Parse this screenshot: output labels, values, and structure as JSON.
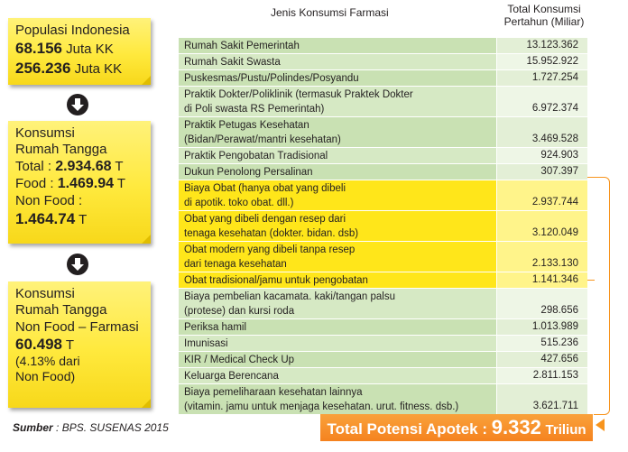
{
  "left": {
    "note1": {
      "title": "Populasi Indonesia",
      "kk_value": "68.156",
      "kk_unit": "Juta KK",
      "pop_value": "256.236",
      "pop_unit": "Juta KK"
    },
    "note2": {
      "line1": "Konsumsi",
      "line2": "Rumah Tangga",
      "total_label": "Total :",
      "total_value": "2.934.68",
      "total_unit": "T",
      "food_label": "Food :",
      "food_value": "1.469.94",
      "food_unit": "T",
      "nonfood_label": "Non Food :",
      "nonfood_value": "1.464.74",
      "nonfood_unit": "T"
    },
    "note3": {
      "line1": "Konsumsi",
      "line2": "Rumah Tangga",
      "line3": "Non Food – Farmasi",
      "value": "60.498",
      "unit": "T",
      "pct_line1": "(4.13% dari",
      "pct_line2": "Non Food)"
    },
    "source_label": "Sumber",
    "source_text": ": BPS. SUSENAS 2015"
  },
  "table": {
    "header_col1": "Jenis Konsumsi Farmasi",
    "header_col2_line1": "Total Konsumsi",
    "header_col2_line2": "Pertahun (Miliar)",
    "rows": [
      {
        "lines": [
          "Rumah Sakit Pemerintah"
        ],
        "value": "13.123.362"
      },
      {
        "lines": [
          "Rumah Sakit Swasta"
        ],
        "value": "15.952.922"
      },
      {
        "lines": [
          "Puskesmas/Pustu/Polindes/Posyandu"
        ],
        "value": "1.727.254"
      },
      {
        "lines": [
          "Praktik Dokter/Poliklinik (termasuk Praktek Dokter",
          "di Poli swasta RS Pemerintah)"
        ],
        "value": "6.972.374"
      },
      {
        "lines": [
          "Praktik Petugas Kesehatan",
          "(Bidan/Perawat/mantri kesehatan)"
        ],
        "value": "3.469.528"
      },
      {
        "lines": [
          "Praktik Pengobatan Tradisional"
        ],
        "value": "924.903"
      },
      {
        "lines": [
          "Dukun Penolong Persalinan"
        ],
        "value": "307.397"
      },
      {
        "lines": [
          "Biaya Obat (hanya obat yang dibeli",
          "di apotik. toko obat. dll.)"
        ],
        "value": "2.937.744"
      },
      {
        "lines": [
          "Obat yang dibeli dengan resep dari",
          "tenaga kesehatan (dokter. bidan. dsb)"
        ],
        "value": "3.120.049"
      },
      {
        "lines": [
          "Obat modern yang dibeli tanpa resep",
          "dari tenaga kesehatan"
        ],
        "value": "2.133.130"
      },
      {
        "lines": [
          "Obat tradisional/jamu untuk pengobatan"
        ],
        "value": "1.141.346"
      },
      {
        "lines": [
          "Biaya pembelian kacamata. kaki/tangan palsu",
          "(protese) dan kursi roda"
        ],
        "value": "298.656"
      },
      {
        "lines": [
          "Periksa hamil"
        ],
        "value": "1.013.989"
      },
      {
        "lines": [
          "Imunisasi"
        ],
        "value": "515.236"
      },
      {
        "lines": [
          "KIR / Medical Check Up"
        ],
        "value": "427.656"
      },
      {
        "lines": [
          "Keluarga Berencana"
        ],
        "value": "2.811.153"
      },
      {
        "lines": [
          "Biaya pemeliharaan kesehatan lainnya",
          "(vitamin. jamu untuk menjaga kesehatan. urut. fitness. dsb.)"
        ],
        "value": "3.621.711"
      }
    ],
    "highlight_rows": [
      7,
      8,
      9,
      10
    ]
  },
  "total": {
    "label": "Total Potensi Apotek :",
    "value": "9.332",
    "unit": "Triliun"
  },
  "colors": {
    "note_yellow": "#ffe93d",
    "row_green": "#c9e1b3",
    "highlight_yellow": "#ffe61a",
    "accent_orange": "#f5821f"
  }
}
